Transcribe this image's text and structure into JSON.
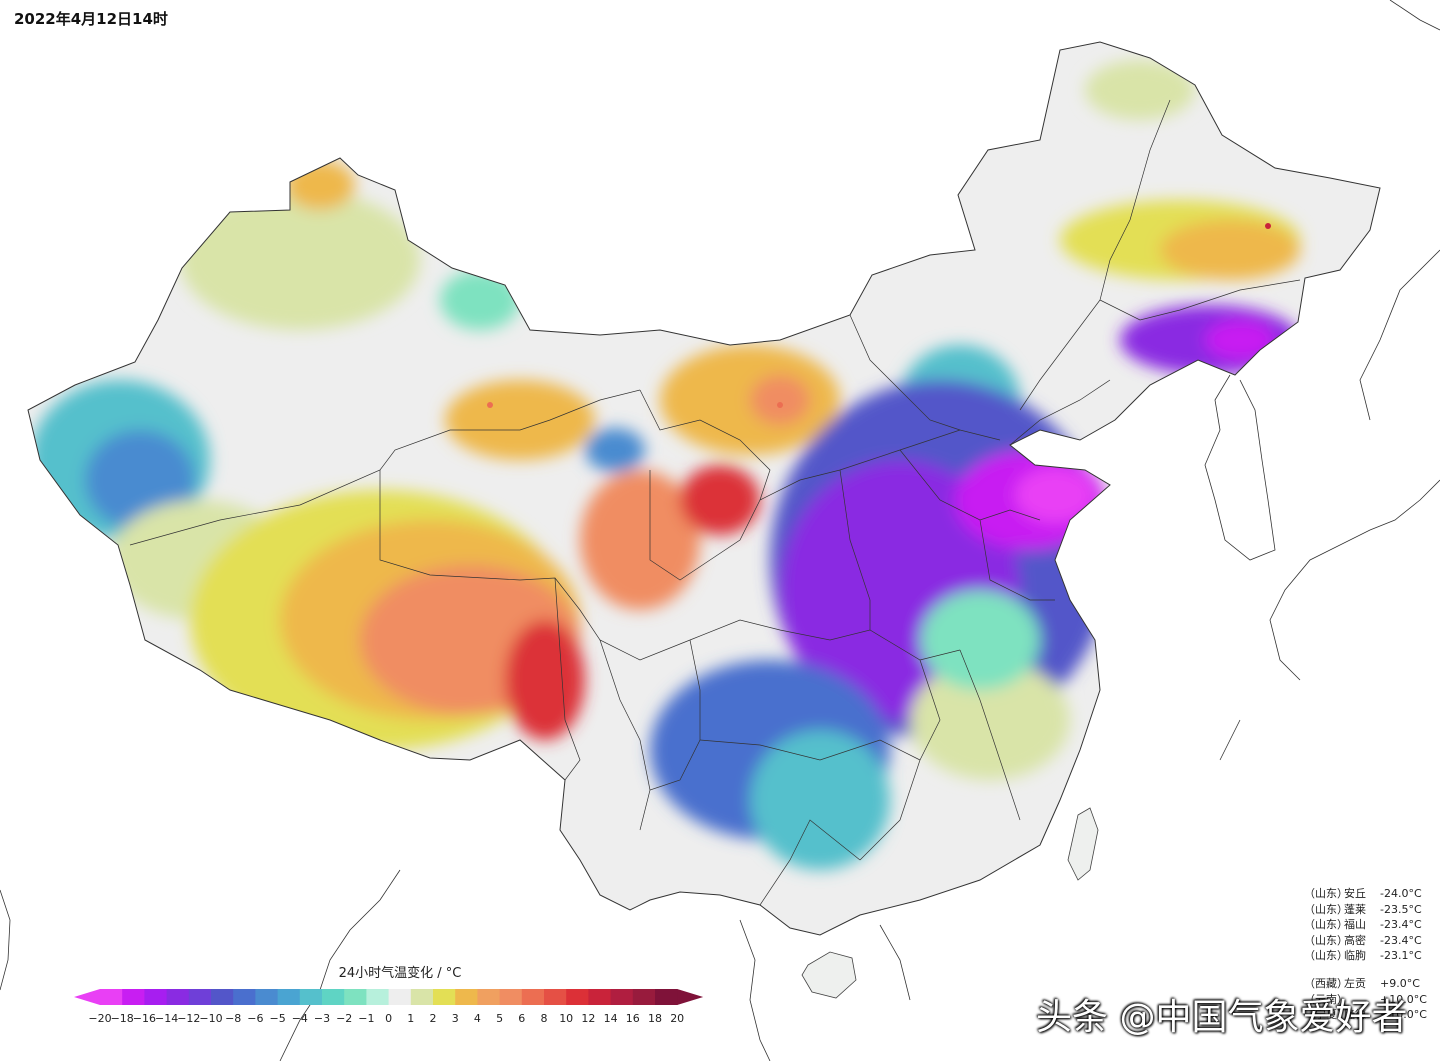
{
  "timestamp": "2022年4月12日14时",
  "colorbar": {
    "title": "24小时气温变化 / °C",
    "ticks": [
      "−20",
      "−18",
      "−16",
      "−14",
      "−12",
      "−10",
      "−8",
      "−6",
      "−5",
      "−4",
      "−3",
      "−2",
      "−1",
      "0",
      "1",
      "2",
      "3",
      "4",
      "5",
      "6",
      "8",
      "10",
      "12",
      "14",
      "16",
      "18",
      "20"
    ],
    "colors": [
      "#e93ff5",
      "#c81ef2",
      "#a71ef0",
      "#8a2be2",
      "#6f3fd8",
      "#5356c9",
      "#4a6fce",
      "#4a8bd0",
      "#4aa4d2",
      "#55c0cc",
      "#5fd4c4",
      "#7ee2c0",
      "#b7f0dc",
      "#eeeeee",
      "#d9e4a8",
      "#e3df55",
      "#eeb84c",
      "#f0a060",
      "#f08d62",
      "#ec6e52",
      "#e55045",
      "#dc3037",
      "#c9233a",
      "#b01e40",
      "#981b3d",
      "#7f1239"
    ]
  },
  "stations": {
    "drops": [
      {
        "province": "（山东）",
        "name": "安丘",
        "value": "-24.0°C"
      },
      {
        "province": "（山东）",
        "name": "蓬莱",
        "value": "-23.5°C"
      },
      {
        "province": "（山东）",
        "name": "福山",
        "value": "-23.4°C"
      },
      {
        "province": "（山东）",
        "name": "高密",
        "value": "-23.4°C"
      },
      {
        "province": "（山东）",
        "name": "临朐",
        "value": "-23.1°C"
      }
    ],
    "rises": [
      {
        "province": "（西藏）",
        "name": "左贡",
        "value": "+9.0°C"
      },
      {
        "province": "",
        "name": "",
        "value": ""
      },
      {
        "province": "",
        "name": "",
        "value": ""
      },
      {
        "province": "（云南）",
        "name": "",
        "value": "+10.0°C"
      },
      {
        "province": "（宁夏）",
        "name": "隆德",
        "value": "+10.0°C"
      }
    ]
  },
  "watermark": "头条 @中国气象爱好者"
}
